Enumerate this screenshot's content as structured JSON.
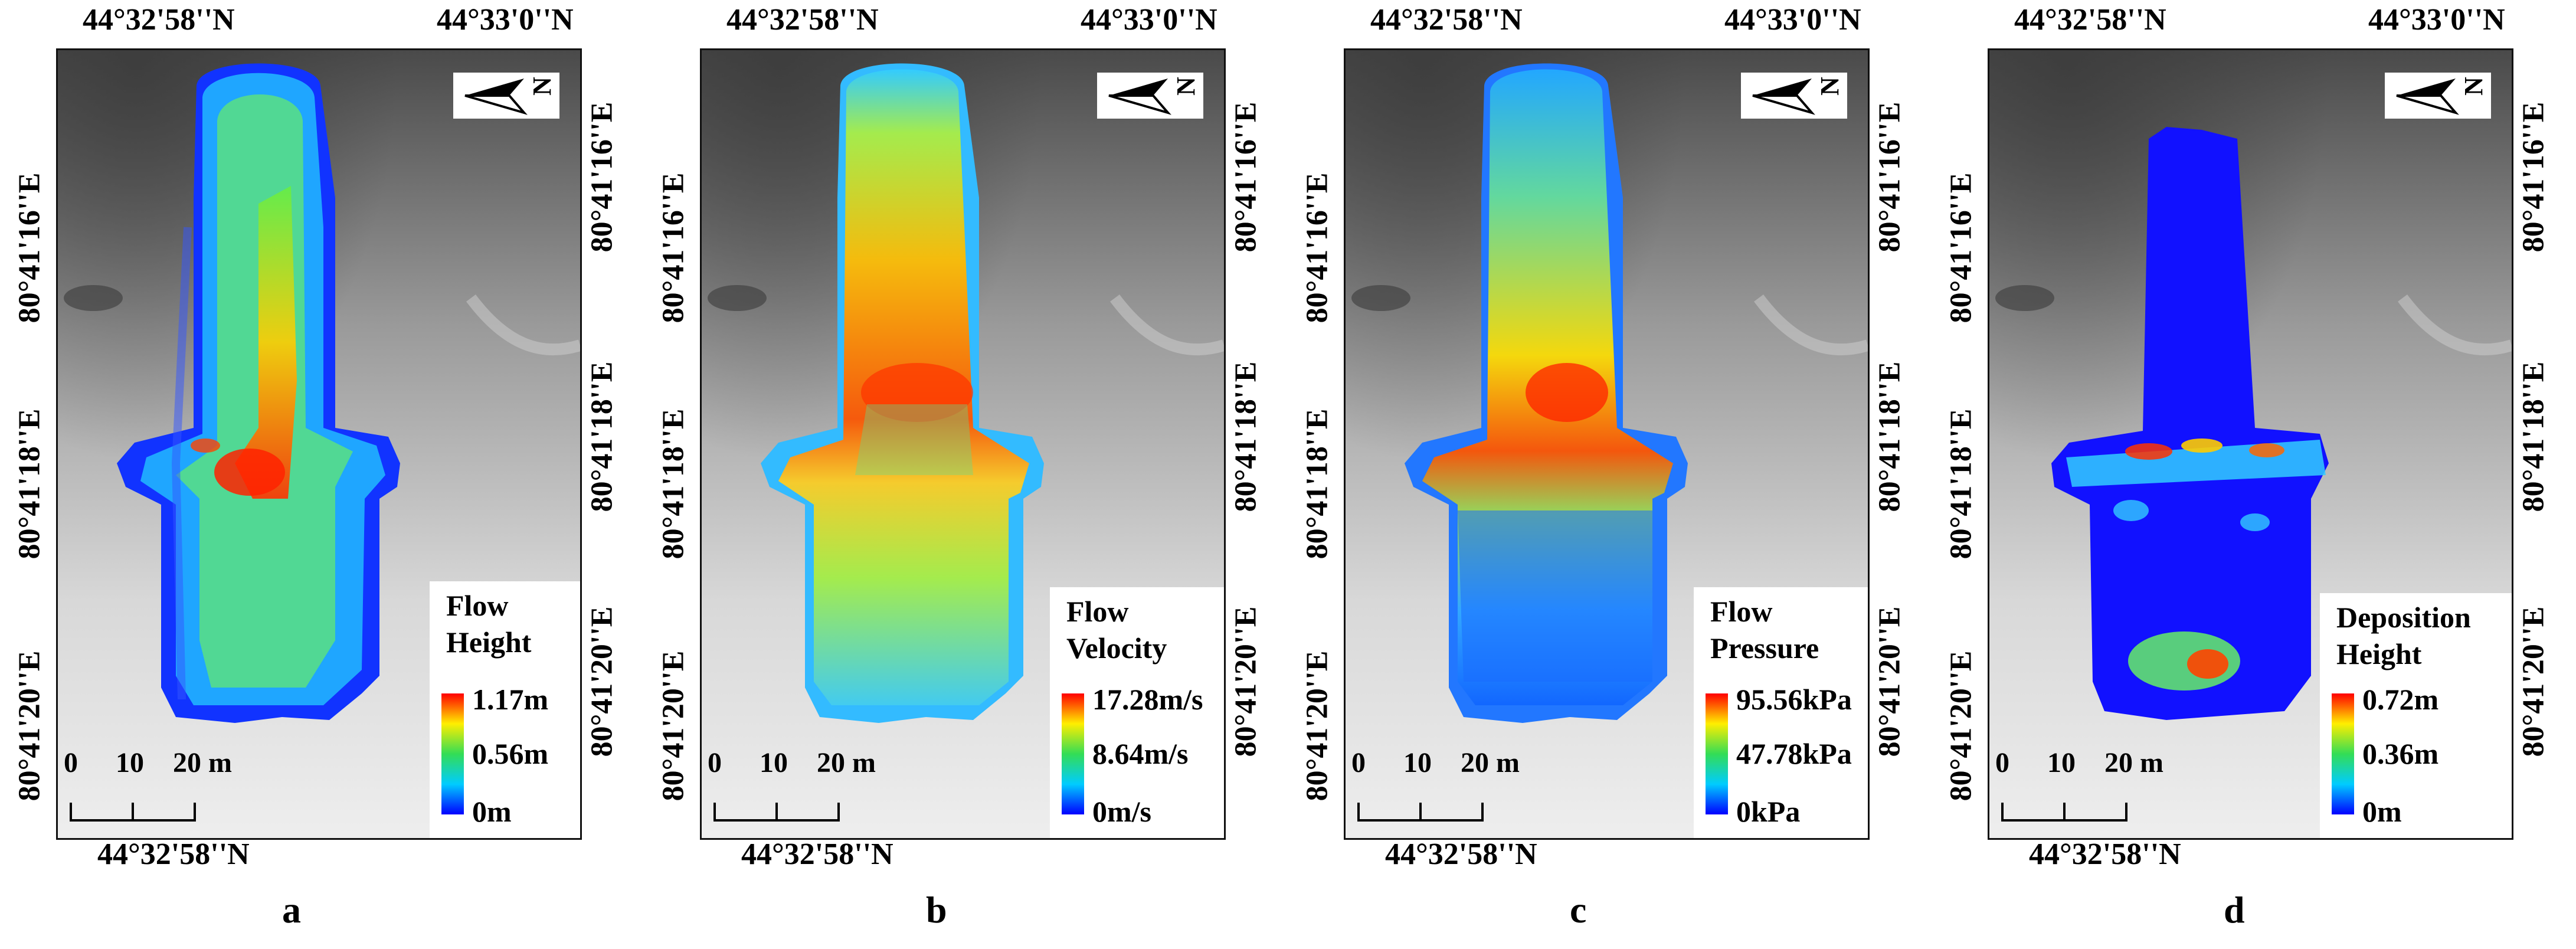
{
  "colors": {
    "scale_low": "#0000ff",
    "scale_mid": "#33dd55",
    "scale_high": "#ff1500",
    "background_dem_dark": "#6a6a6a",
    "background_dem_light": "#e8e8e8"
  },
  "north_arrow_icon": "north-arrow-icon",
  "panels": [
    {
      "letter": "a",
      "lat_top_left": "44°32'58''N",
      "lat_top_right": "44°33'0''N",
      "lat_bottom": "44°32'58''N",
      "lon_left": [
        "80°41'16''E",
        "80°41'18''E",
        "80°41'20''E"
      ],
      "lon_right": [
        "80°41'16''E",
        "80°41'18''E",
        "80°41'20''E"
      ],
      "north_label": "N",
      "scale_labels": [
        "0",
        "10",
        "20 m"
      ],
      "legend": {
        "title_lines": [
          "Flow",
          "Height"
        ],
        "max": "1.17m",
        "mid": "0.56m",
        "min": "0m"
      }
    },
    {
      "letter": "b",
      "lat_top_left": "44°32'58''N",
      "lat_top_right": "44°33'0''N",
      "lat_bottom": "44°32'58''N",
      "lon_left": [
        "80°41'16''E",
        "80°41'18''E",
        "80°41'20''E"
      ],
      "lon_right": [
        "80°41'16''E",
        "80°41'18''E",
        "80°41'20''E"
      ],
      "north_label": "N",
      "scale_labels": [
        "0",
        "10",
        "20 m"
      ],
      "legend": {
        "title_lines": [
          "Flow",
          "Velocity"
        ],
        "max": "17.28m/s",
        "mid": "8.64m/s",
        "min": "0m/s"
      }
    },
    {
      "letter": "c",
      "lat_top_left": "44°32'58''N",
      "lat_top_right": "44°33'0''N",
      "lat_bottom": "44°32'58''N",
      "lon_left": [
        "80°41'16''E",
        "80°41'18''E",
        "80°41'20''E"
      ],
      "lon_right": [
        "80°41'16''E",
        "80°41'18''E",
        "80°41'20''E"
      ],
      "north_label": "N",
      "scale_labels": [
        "0",
        "10",
        "20 m"
      ],
      "legend": {
        "title_lines": [
          "Flow",
          "Pressure"
        ],
        "max": "95.56kPa",
        "mid": "47.78kPa",
        "min": "0kPa"
      }
    },
    {
      "letter": "d",
      "lat_top_left": "44°32'58''N",
      "lat_top_right": "44°33'0''N",
      "lat_bottom": "44°32'58''N",
      "lon_left": [
        "80°41'16''E",
        "80°41'18''E",
        "80°41'20''E"
      ],
      "lon_right": [
        "80°41'16''E",
        "80°41'18''E",
        "80°41'20''E"
      ],
      "north_label": "N",
      "scale_labels": [
        "0",
        "10",
        "20 m"
      ],
      "legend": {
        "title_lines": [
          "Deposition",
          "Height"
        ],
        "max": "0.72m",
        "mid": "0.36m",
        "min": "0m"
      }
    }
  ]
}
